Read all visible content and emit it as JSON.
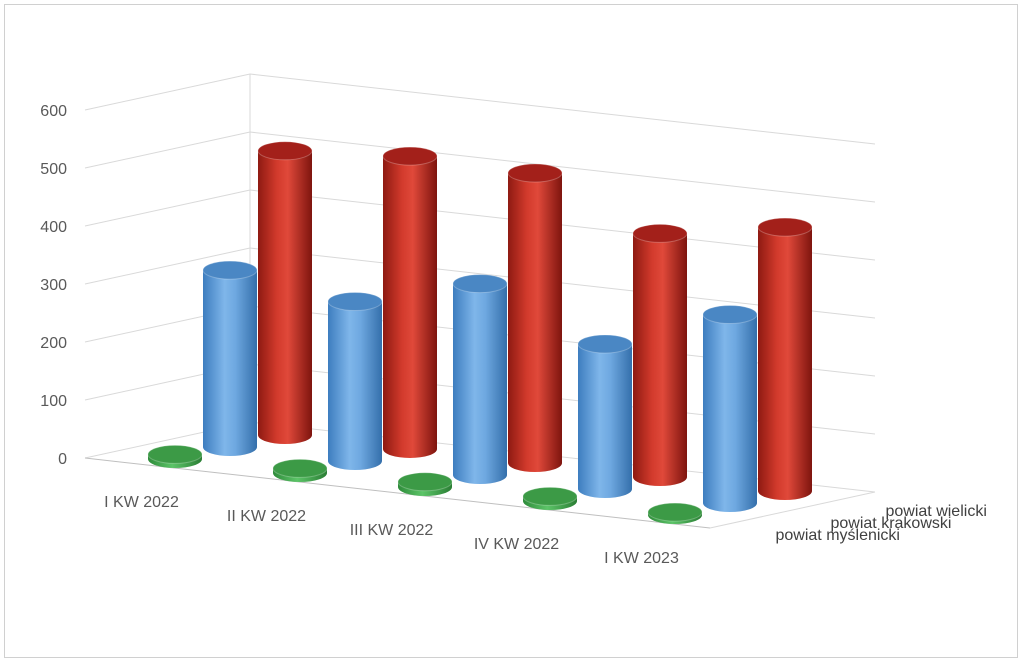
{
  "chart_data": {
    "type": "bar",
    "style": "3d-cylinder",
    "categories": [
      "I KW 2022",
      "II KW 2022",
      "III KW 2022",
      "IV KW 2022",
      "I KW 2023"
    ],
    "series": [
      {
        "name": "powiat myślenicki",
        "values": [
          8,
          8,
          9,
          8,
          5
        ],
        "color": "#4CAF50"
      },
      {
        "name": "powiat krakowski",
        "values": [
          305,
          275,
          330,
          250,
          325
        ],
        "color": "#5B9BD5"
      },
      {
        "name": "powiat wielicki",
        "values": [
          490,
          505,
          500,
          420,
          455
        ],
        "color": "#C0281E"
      }
    ],
    "yticks": [
      0,
      100,
      200,
      300,
      400,
      500,
      600
    ],
    "ylim": [
      0,
      600
    ],
    "grid": true,
    "legend": "right"
  }
}
